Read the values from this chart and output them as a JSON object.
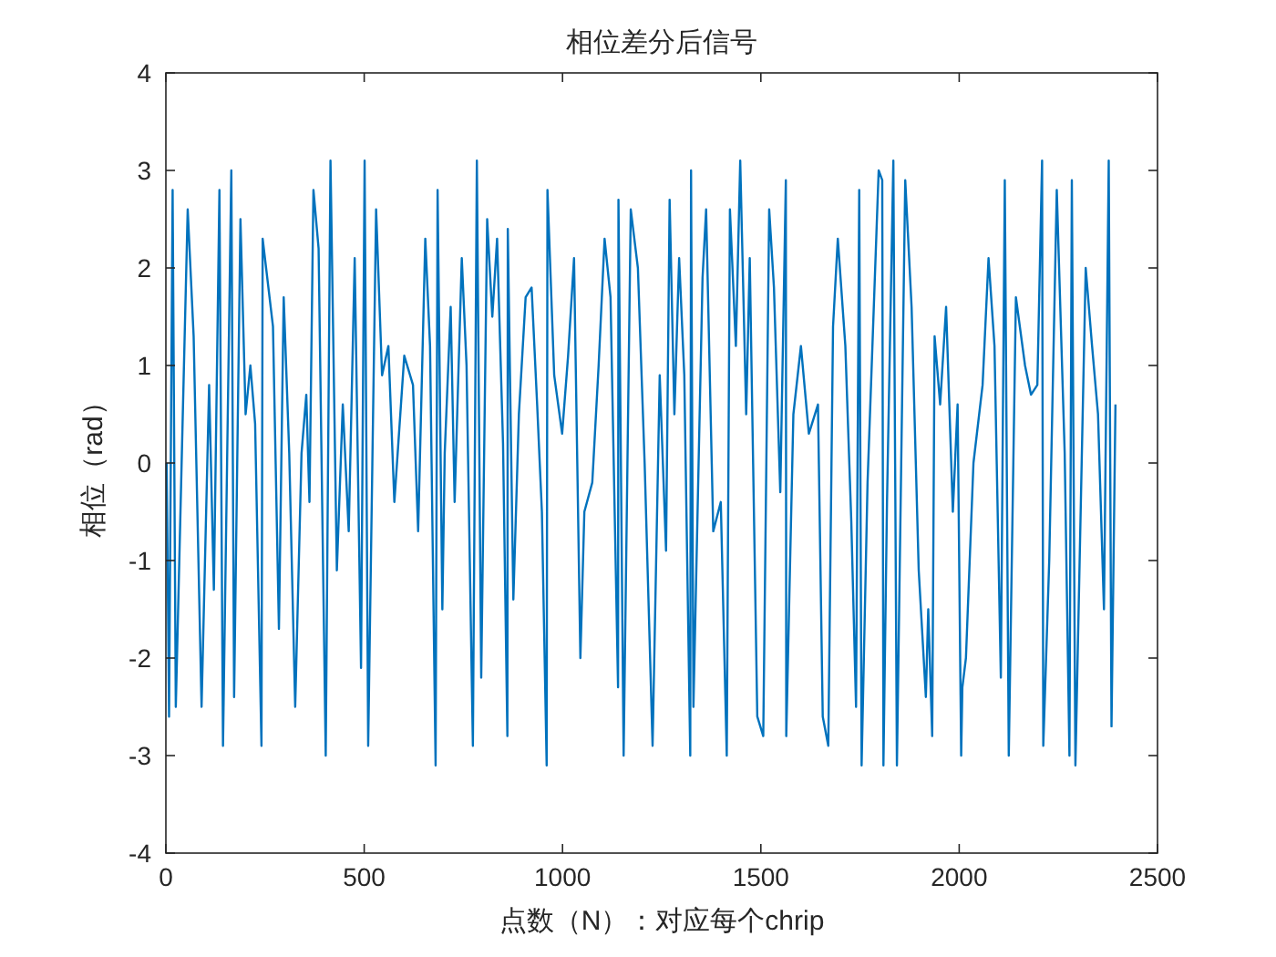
{
  "chart_data": {
    "type": "line",
    "title": "相位差分后信号",
    "xlabel": "点数（N）：对应每个chrip",
    "ylabel": "相位（rad）",
    "xlim": [
      0,
      2500
    ],
    "ylim": [
      -4,
      4
    ],
    "xticks": [
      0,
      500,
      1000,
      1500,
      2000,
      2500
    ],
    "yticks": [
      -4,
      -3,
      -2,
      -1,
      0,
      1,
      2,
      3,
      4
    ],
    "color": "#0072bd",
    "x": [
      2,
      8,
      17,
      25,
      55,
      70,
      90,
      109,
      121,
      135,
      144,
      165,
      172,
      188,
      201,
      213,
      225,
      241,
      244,
      270,
      285,
      297,
      311,
      326,
      342,
      354,
      362,
      372,
      385,
      403,
      415,
      431,
      446,
      461,
      476,
      492,
      501,
      510,
      530,
      545,
      561,
      576,
      601,
      623,
      636,
      654,
      666,
      680,
      685,
      697,
      703,
      718,
      728,
      746,
      758,
      774,
      784,
      795,
      810,
      823,
      835,
      850,
      861,
      862,
      876,
      890,
      907,
      922,
      936,
      948,
      960,
      962,
      979,
      999,
      1014,
      1029,
      1045,
      1055,
      1075,
      1091,
      1106,
      1121,
      1140,
      1141,
      1154,
      1172,
      1190,
      1207,
      1227,
      1245,
      1261,
      1270,
      1282,
      1294,
      1307,
      1322,
      1324,
      1330,
      1353,
      1362,
      1380,
      1399,
      1414,
      1422,
      1437,
      1448,
      1463,
      1472,
      1491,
      1506,
      1521,
      1533,
      1549,
      1563,
      1564,
      1582,
      1601,
      1621,
      1644,
      1656,
      1670,
      1682,
      1694,
      1713,
      1728,
      1740,
      1748,
      1754,
      1769,
      1797,
      1806,
      1809,
      1818,
      1834,
      1843,
      1864,
      1880,
      1898,
      1916,
      1922,
      1932,
      1938,
      1952,
      1967,
      1984,
      1996,
      2005,
      2008,
      2017,
      2036,
      2059,
      2074,
      2089,
      2105,
      2115,
      2125,
      2143,
      2166,
      2181,
      2197,
      2209,
      2212,
      2227,
      2246,
      2266,
      2278,
      2284,
      2293,
      2319,
      2335,
      2350,
      2365,
      2377,
      2384,
      2394
    ],
    "values": [
      0.0,
      -2.6,
      2.8,
      -2.5,
      2.6,
      1.3,
      -2.5,
      0.8,
      -1.3,
      2.8,
      -2.9,
      3.0,
      -2.4,
      2.5,
      0.5,
      1.0,
      0.4,
      -2.9,
      2.3,
      1.4,
      -1.7,
      1.7,
      0.1,
      -2.5,
      0.1,
      0.7,
      -0.4,
      2.8,
      2.2,
      -3.0,
      3.1,
      -1.1,
      0.6,
      -0.7,
      2.1,
      -2.1,
      3.1,
      -2.9,
      2.6,
      0.9,
      1.2,
      -0.4,
      1.1,
      0.8,
      -0.7,
      2.3,
      1.2,
      -3.1,
      2.8,
      -1.5,
      0.1,
      1.6,
      -0.4,
      2.1,
      1.0,
      -2.9,
      3.1,
      -2.2,
      2.5,
      1.5,
      2.3,
      0.2,
      -2.8,
      2.4,
      -1.4,
      0.5,
      1.7,
      1.8,
      0.6,
      -0.5,
      -3.1,
      2.8,
      0.9,
      0.3,
      1.1,
      2.1,
      -2.0,
      -0.5,
      -0.2,
      1.0,
      2.3,
      1.7,
      -2.3,
      2.7,
      -3.0,
      2.6,
      2.0,
      0.0,
      -2.9,
      0.9,
      -0.9,
      2.7,
      0.5,
      2.1,
      0.9,
      -3.0,
      3.0,
      -2.5,
      1.9,
      2.6,
      -0.7,
      -0.4,
      -3.0,
      2.6,
      1.2,
      3.1,
      0.5,
      2.1,
      -2.6,
      -2.8,
      2.6,
      1.8,
      -0.3,
      2.9,
      -2.8,
      0.5,
      1.2,
      0.3,
      0.6,
      -2.6,
      -2.9,
      1.4,
      2.3,
      1.2,
      -0.6,
      -2.5,
      2.8,
      -3.1,
      -0.2,
      3.0,
      2.9,
      -3.1,
      -0.4,
      3.1,
      -3.1,
      2.9,
      1.6,
      -1.1,
      -2.4,
      -1.5,
      -2.8,
      1.3,
      0.6,
      1.6,
      -0.5,
      0.6,
      -3.0,
      -2.3,
      -2.0,
      0.0,
      0.8,
      2.1,
      1.2,
      -2.2,
      2.9,
      -3.0,
      1.7,
      1.0,
      0.7,
      0.8,
      3.1,
      -2.9,
      -1.0,
      2.8,
      0.1,
      -3.0,
      2.9,
      -3.1,
      2.0,
      1.2,
      0.5,
      -1.5,
      3.1,
      -2.7,
      0.6
    ]
  }
}
